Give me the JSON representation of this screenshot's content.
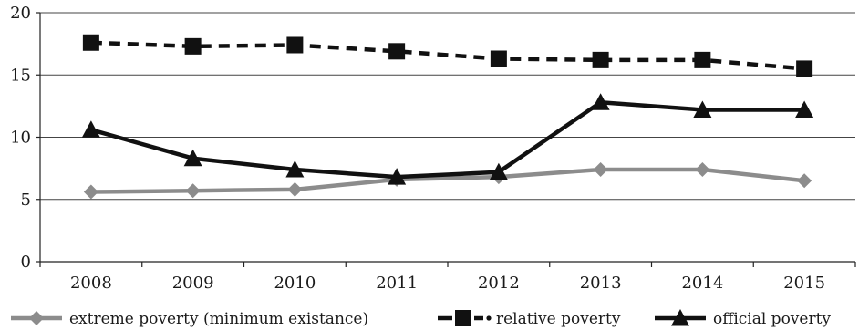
{
  "chart_data": {
    "type": "line",
    "categories": [
      "2008",
      "2009",
      "2010",
      "2011",
      "2012",
      "2013",
      "2014",
      "2015"
    ],
    "ylim": [
      0,
      20
    ],
    "yticks": [
      0,
      5,
      10,
      15,
      20
    ],
    "grid": "horizontal",
    "legend_position": "bottom",
    "series": [
      {
        "name": "extreme poverty (minimum existance)",
        "values": [
          5.6,
          5.7,
          5.8,
          6.6,
          6.8,
          7.4,
          7.4,
          6.5
        ],
        "color": "#8c8c8c",
        "line_style": "solid",
        "marker": "diamond"
      },
      {
        "name": "relative poverty",
        "values": [
          17.6,
          17.3,
          17.4,
          16.9,
          16.3,
          16.2,
          16.2,
          15.5
        ],
        "color": "#111111",
        "line_style": "dashed",
        "marker": "square"
      },
      {
        "name": "official poverty",
        "values": [
          10.6,
          8.3,
          7.4,
          6.8,
          7.2,
          12.8,
          12.2,
          12.2
        ],
        "color": "#111111",
        "line_style": "solid",
        "marker": "triangle"
      }
    ]
  }
}
